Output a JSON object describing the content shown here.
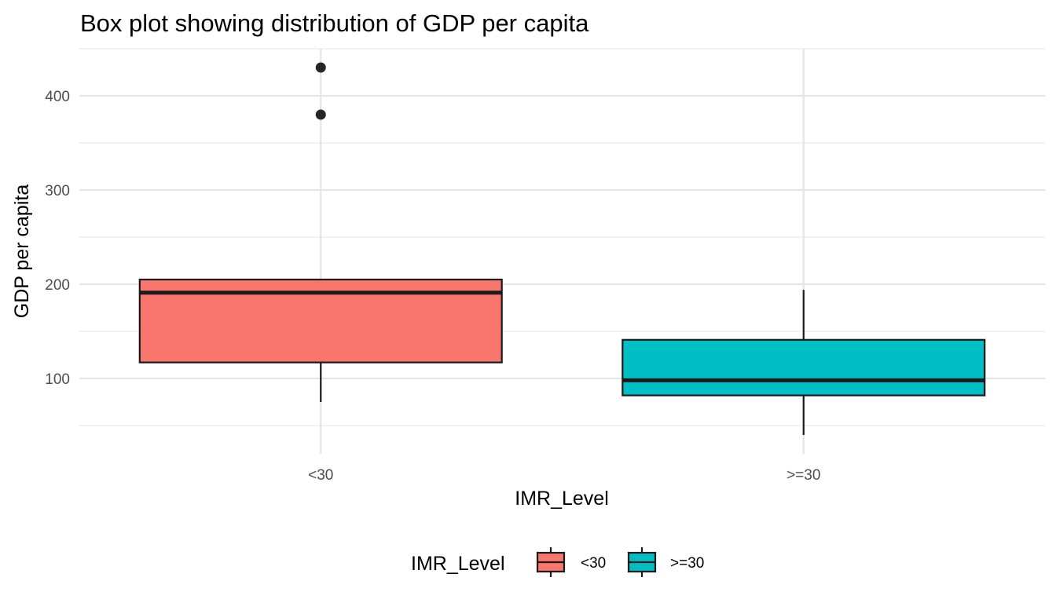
{
  "chart_data": {
    "type": "box",
    "title": "Box plot showing distribution of GDP per capita",
    "xlabel": "IMR_Level",
    "ylabel": "GDP per capita",
    "categories": [
      "<30",
      ">=30"
    ],
    "ylim": [
      20,
      450
    ],
    "y_ticks": [
      100,
      200,
      300,
      400
    ],
    "y_tick_labels": [
      "100",
      "200",
      "300",
      "400"
    ],
    "grid": true,
    "legend": {
      "title": "IMR_Level",
      "position": "bottom",
      "entries": [
        "<30",
        ">=30"
      ]
    },
    "boxes": [
      {
        "category": "<30",
        "color": "#F8766D",
        "whisker_low": 75,
        "q1": 117,
        "median": 191,
        "q3": 205,
        "whisker_high": 205,
        "outliers": [
          380,
          430
        ]
      },
      {
        "category": ">=30",
        "color": "#00BFC4",
        "whisker_low": 40,
        "q1": 82,
        "median": 98,
        "q3": 141,
        "whisker_high": 194,
        "outliers": []
      }
    ]
  }
}
